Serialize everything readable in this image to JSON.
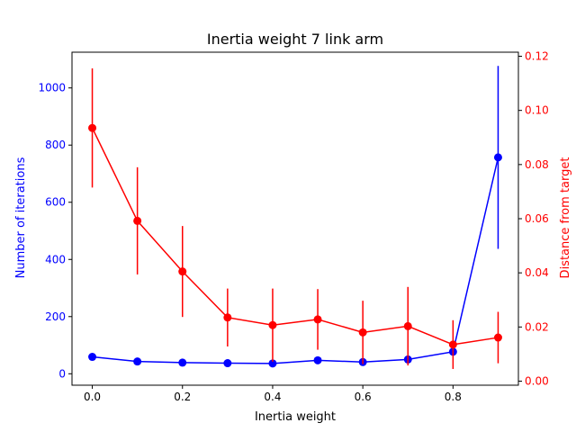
{
  "chart_data": {
    "type": "line",
    "title": "Inertia weight 7 link arm",
    "xlabel": "Inertia weight",
    "ylabel_left": "Number of iterations",
    "ylabel_right": "Distance from target",
    "x": [
      0.0,
      0.1,
      0.2,
      0.3,
      0.4,
      0.5,
      0.6,
      0.7,
      0.8,
      0.9
    ],
    "xlim": [
      -0.045,
      0.945
    ],
    "xticks": [
      "0.0",
      "0.2",
      "0.4",
      "0.6",
      "0.8"
    ],
    "xtick_values": [
      0.0,
      0.2,
      0.4,
      0.6,
      0.8
    ],
    "ylim_left": [
      -40,
      1125
    ],
    "yticks_left": [
      "0",
      "200",
      "400",
      "600",
      "800",
      "1000"
    ],
    "ytick_values_left": [
      0,
      200,
      400,
      600,
      800,
      1000
    ],
    "ylim_right": [
      -0.0015,
      0.1215
    ],
    "yticks_right": [
      "0.00",
      "0.02",
      "0.04",
      "0.06",
      "0.08",
      "0.10",
      "0.12"
    ],
    "ytick_values_right": [
      0.0,
      0.02,
      0.04,
      0.06,
      0.08,
      0.1,
      0.12
    ],
    "series": [
      {
        "axis": "left",
        "color": "#0000ff",
        "values": [
          59,
          43,
          39,
          37,
          36,
          47,
          41,
          50,
          77,
          757
        ],
        "errors": [
          0,
          0,
          0,
          0,
          0,
          0,
          0,
          0,
          0,
          320
        ]
      },
      {
        "axis": "right",
        "color": "#ff0000",
        "values": [
          0.0935,
          0.0592,
          0.0405,
          0.0235,
          0.0207,
          0.0228,
          0.018,
          0.0203,
          0.0135,
          0.0161
        ],
        "errors": [
          0.022,
          0.0198,
          0.0168,
          0.0107,
          0.0135,
          0.0112,
          0.0117,
          0.0145,
          0.009,
          0.0095
        ]
      }
    ]
  }
}
